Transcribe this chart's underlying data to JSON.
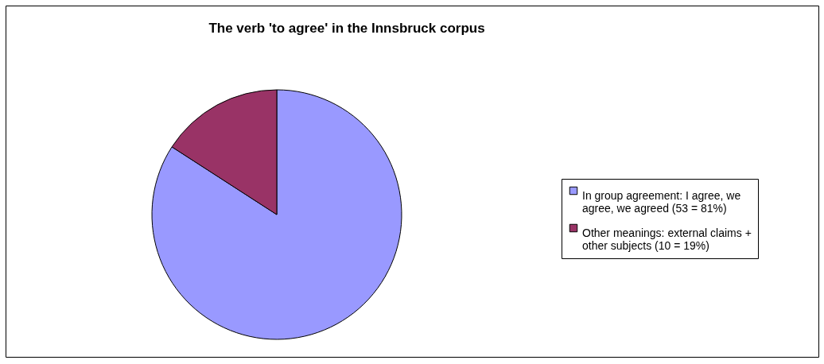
{
  "chart_data": {
    "type": "pie",
    "title": "The verb 'to agree' in the Innsbruck corpus",
    "categories": [
      "In group agreement: I agree, we agree, we agreed (53 = 81%)",
      "Other meanings: external claims + other subjects (10 = 19%)"
    ],
    "values": [
      53,
      10
    ],
    "colors": [
      "#9999ff",
      "#993366"
    ],
    "legend": "right"
  }
}
